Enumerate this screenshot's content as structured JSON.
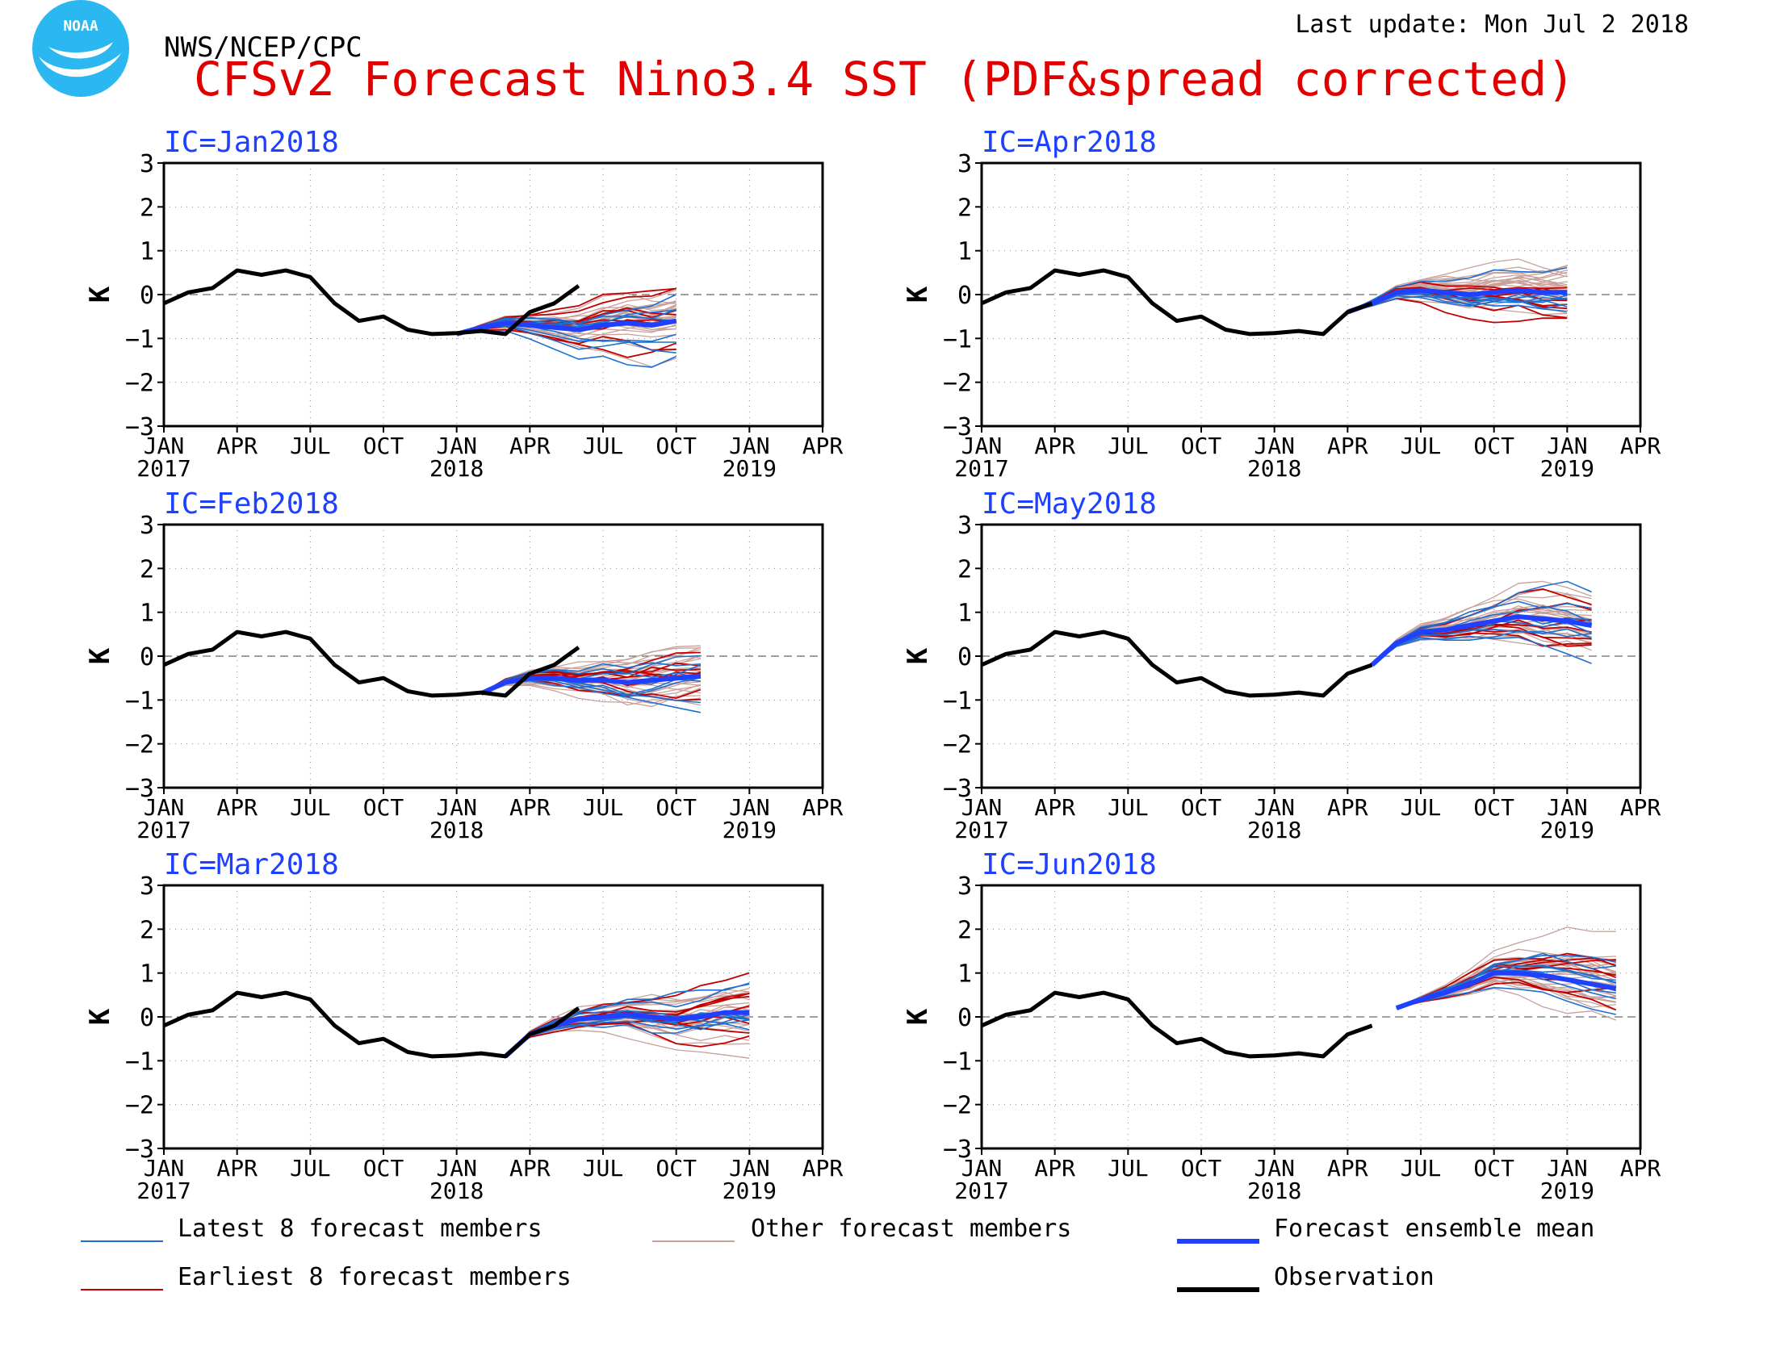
{
  "header": {
    "agency": "NWS/NCEP/CPC",
    "title": "CFSv2 Forecast Nino3.4 SST (PDF&spread corrected)",
    "last_update": "Last update: Mon Jul 2 2018",
    "logo_text": "NOAA"
  },
  "colors": {
    "title": "#e00000",
    "panel_title": "#1e40ff",
    "latest": "#1e6fd0",
    "earliest": "#c00000",
    "other": "#c8a09a",
    "mean": "#2040ff",
    "observation": "#000000",
    "logo": "#2bb8f0"
  },
  "legend": {
    "latest": "Latest 8 forecast members",
    "other": "Other forecast members",
    "mean": "Forecast ensemble mean",
    "earliest": "Earliest 8 forecast members",
    "observation": "Observation"
  },
  "chart_data": {
    "type": "line",
    "ylabel": "K",
    "ylim": [
      -3,
      3
    ],
    "yticks": [
      "3",
      "2",
      "1",
      "0",
      "−1",
      "−2",
      "−3"
    ],
    "xlim": [
      "2017-01",
      "2019-04"
    ],
    "xticks": [
      "JAN",
      "APR",
      "JUL",
      "OCT",
      "JAN",
      "APR",
      "JUL",
      "OCT",
      "JAN",
      "APR"
    ],
    "xyears": [
      "2017",
      "",
      "",
      "",
      "2018",
      "",
      "",
      "",
      "2019",
      ""
    ],
    "observation": {
      "name": "Observation",
      "x": [
        "2017-01",
        "2017-02",
        "2017-03",
        "2017-04",
        "2017-05",
        "2017-06",
        "2017-07",
        "2017-08",
        "2017-09",
        "2017-10",
        "2017-11",
        "2017-12",
        "2018-01",
        "2018-02",
        "2018-03",
        "2018-04",
        "2018-05",
        "2018-06"
      ],
      "values": [
        -0.2,
        0.05,
        0.15,
        0.55,
        0.45,
        0.55,
        0.4,
        -0.2,
        -0.6,
        -0.5,
        -0.8,
        -0.9,
        -0.88,
        -0.83,
        -0.9,
        -0.4,
        -0.2,
        0.2
      ]
    },
    "panels": [
      {
        "ic": "IC=Jan2018",
        "start": "2018-01",
        "obs_end": "2018-06",
        "ensemble_mean": [
          -0.9,
          -0.75,
          -0.65,
          -0.7,
          -0.75,
          -0.8,
          -0.7,
          -0.65,
          -0.7,
          -0.6
        ]
      },
      {
        "ic": "IC=Apr2018",
        "start": "2018-04",
        "obs_end": "2018-05",
        "ensemble_mean": [
          -0.4,
          -0.2,
          0.05,
          0.1,
          0.05,
          0.0,
          0.05,
          0.1,
          0.05,
          0.05
        ]
      },
      {
        "ic": "IC=Feb2018",
        "start": "2018-02",
        "obs_end": "2018-06",
        "ensemble_mean": [
          -0.85,
          -0.6,
          -0.5,
          -0.5,
          -0.55,
          -0.55,
          -0.6,
          -0.55,
          -0.5,
          -0.45
        ]
      },
      {
        "ic": "IC=May2018",
        "start": "2018-05",
        "obs_end": "2018-05",
        "ensemble_mean": [
          -0.2,
          0.3,
          0.55,
          0.6,
          0.7,
          0.8,
          0.9,
          0.85,
          0.8,
          0.7
        ]
      },
      {
        "ic": "IC=Mar2018",
        "start": "2018-03",
        "obs_end": "2018-06",
        "ensemble_mean": [
          -0.9,
          -0.4,
          -0.2,
          -0.05,
          0.0,
          0.05,
          0.0,
          -0.05,
          0.0,
          0.1,
          0.1
        ]
      },
      {
        "ic": "IC=Jun2018",
        "start": "2018-06",
        "obs_end": "2018-05",
        "ensemble_mean": [
          0.2,
          0.4,
          0.55,
          0.75,
          1.0,
          1.0,
          0.95,
          0.85,
          0.75,
          0.65
        ]
      }
    ]
  }
}
